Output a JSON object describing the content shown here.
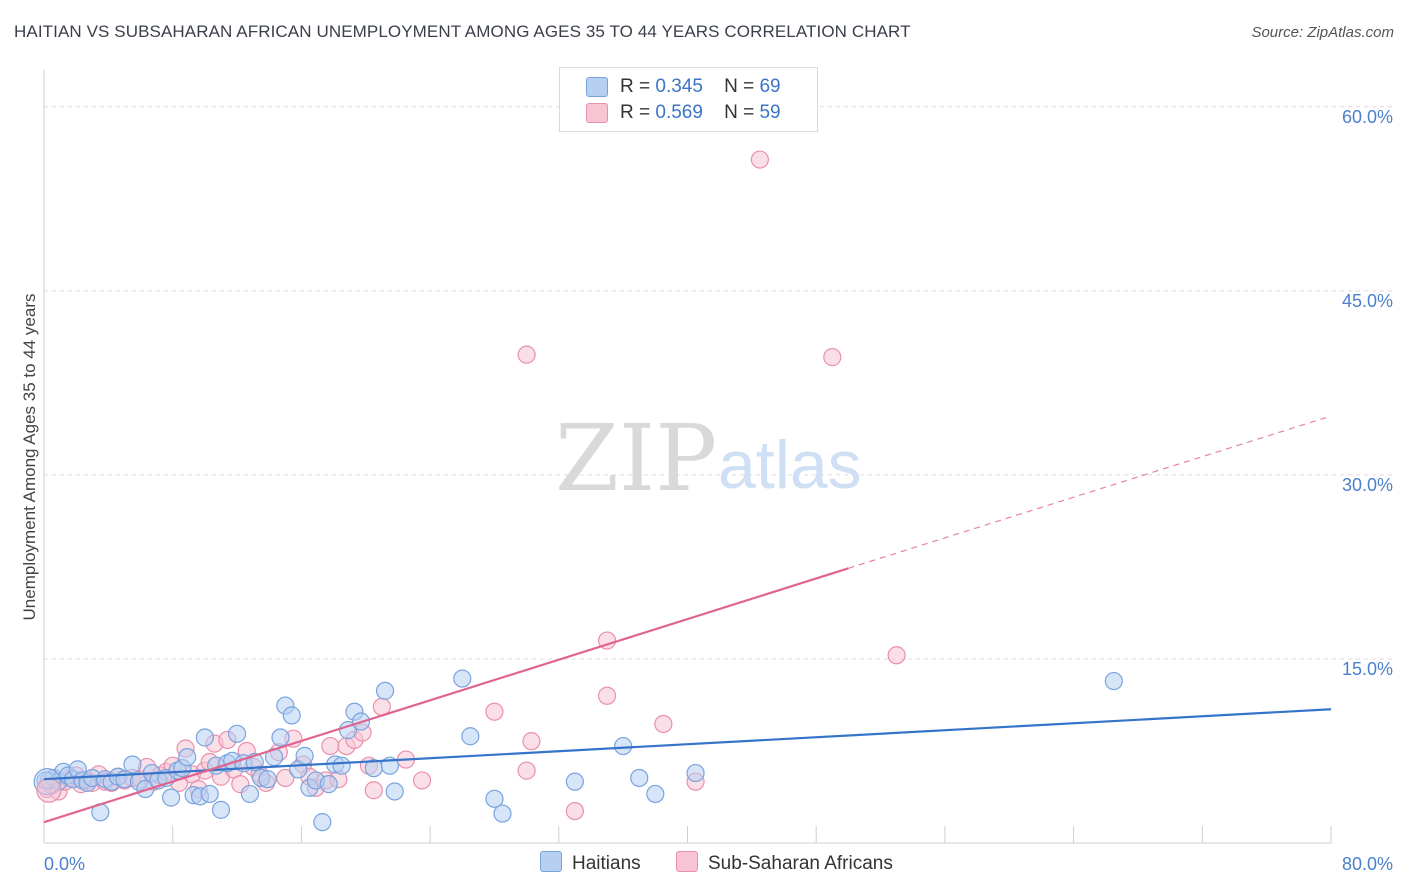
{
  "title": "HAITIAN VS SUBSAHARAN AFRICAN UNEMPLOYMENT AMONG AGES 35 TO 44 YEARS CORRELATION CHART",
  "source": "Source: ZipAtlas.com",
  "watermark": {
    "zip": "ZIP",
    "atlas": "atlas"
  },
  "legend_top": [
    {
      "r_label": "R =",
      "r_value": "0.345",
      "n_label": "N =",
      "n_value": "69"
    },
    {
      "r_label": "R =",
      "r_value": "0.569",
      "n_label": "N =",
      "n_value": "59"
    }
  ],
  "legend_bottom": [
    {
      "label": "Haitians"
    },
    {
      "label": "Sub-Saharan Africans"
    }
  ],
  "colors": {
    "haitian_fill": "#b7d0f2",
    "haitian_stroke": "#7aa3dd",
    "haitian_line": "#3674c9",
    "ssa_fill": "#f8c4d4",
    "ssa_stroke": "#e98fae",
    "ssa_line": "#e0648e",
    "tick_label": "#4a80cc",
    "grid": "#dcdcdc"
  },
  "chart_data": {
    "type": "scatter",
    "title": "HAITIAN VS SUBSAHARAN AFRICAN UNEMPLOYMENT AMONG AGES 35 TO 44 YEARS CORRELATION CHART",
    "xlabel": "",
    "ylabel": "Unemployment Among Ages 35 to 44 years",
    "xlim": [
      0,
      80
    ],
    "ylim": [
      0,
      63
    ],
    "x_tick_labels": [
      "0.0%",
      "80.0%"
    ],
    "y_ticks": [
      15,
      30,
      45,
      60
    ],
    "y_tick_labels": [
      "15.0%",
      "30.0%",
      "45.0%",
      "60.0%"
    ],
    "grid": true,
    "series": [
      {
        "name": "Haitians",
        "r": 0.345,
        "n": 69,
        "trend": {
          "x": [
            0,
            80
          ],
          "y": [
            5.2,
            10.9
          ],
          "dashed_from": null
        },
        "points": [
          [
            0.3,
            5.1
          ],
          [
            0.6,
            5.3
          ],
          [
            0.9,
            5.0
          ],
          [
            1.2,
            5.8
          ],
          [
            1.5,
            5.5
          ],
          [
            1.8,
            5.2
          ],
          [
            2.1,
            6.0
          ],
          [
            2.4,
            5.1
          ],
          [
            2.7,
            4.9
          ],
          [
            3.0,
            5.3
          ],
          [
            3.5,
            2.5
          ],
          [
            3.8,
            5.2
          ],
          [
            4.2,
            5.0
          ],
          [
            4.6,
            5.4
          ],
          [
            5.0,
            5.2
          ],
          [
            5.5,
            6.4
          ],
          [
            5.9,
            5.0
          ],
          [
            6.3,
            4.4
          ],
          [
            6.7,
            5.7
          ],
          [
            7.1,
            5.1
          ],
          [
            7.6,
            5.3
          ],
          [
            7.9,
            3.7
          ],
          [
            8.3,
            5.9
          ],
          [
            8.6,
            6.1
          ],
          [
            8.9,
            7.0
          ],
          [
            9.3,
            3.9
          ],
          [
            9.7,
            3.8
          ],
          [
            10.0,
            8.6
          ],
          [
            10.3,
            4.0
          ],
          [
            10.7,
            6.3
          ],
          [
            11.0,
            2.7
          ],
          [
            11.4,
            6.5
          ],
          [
            11.7,
            6.7
          ],
          [
            12.0,
            8.9
          ],
          [
            12.4,
            6.5
          ],
          [
            12.8,
            4.0
          ],
          [
            13.1,
            6.6
          ],
          [
            13.5,
            5.3
          ],
          [
            13.9,
            5.2
          ],
          [
            14.3,
            7.0
          ],
          [
            14.7,
            8.6
          ],
          [
            15.0,
            11.2
          ],
          [
            15.4,
            10.4
          ],
          [
            15.8,
            6.0
          ],
          [
            16.2,
            7.1
          ],
          [
            16.5,
            4.5
          ],
          [
            16.9,
            5.1
          ],
          [
            17.3,
            1.7
          ],
          [
            17.7,
            4.8
          ],
          [
            18.1,
            6.4
          ],
          [
            18.5,
            6.3
          ],
          [
            18.9,
            9.2
          ],
          [
            19.3,
            10.7
          ],
          [
            19.7,
            9.9
          ],
          [
            20.5,
            6.1
          ],
          [
            21.2,
            12.4
          ],
          [
            21.5,
            6.3
          ],
          [
            21.8,
            4.2
          ],
          [
            26.0,
            13.4
          ],
          [
            26.5,
            8.7
          ],
          [
            28.0,
            3.6
          ],
          [
            28.5,
            2.4
          ],
          [
            33.0,
            5.0
          ],
          [
            36.0,
            7.9
          ],
          [
            37.0,
            5.3
          ],
          [
            38.0,
            4.0
          ],
          [
            40.5,
            5.7
          ],
          [
            66.5,
            13.2
          ],
          [
            0.1,
            5.1
          ]
        ]
      },
      {
        "name": "Sub-Saharan Africans",
        "r": 0.569,
        "n": 59,
        "trend": {
          "x": [
            0,
            80
          ],
          "y": [
            1.7,
            34.8
          ],
          "dashed_from": 50
        },
        "points": [
          [
            0.2,
            4.4
          ],
          [
            0.5,
            4.7
          ],
          [
            0.9,
            4.2
          ],
          [
            1.3,
            5.0
          ],
          [
            1.6,
            5.3
          ],
          [
            2.0,
            5.5
          ],
          [
            2.3,
            4.8
          ],
          [
            2.7,
            5.1
          ],
          [
            3.0,
            4.9
          ],
          [
            3.4,
            5.6
          ],
          [
            3.8,
            5.0
          ],
          [
            4.2,
            4.9
          ],
          [
            4.6,
            5.4
          ],
          [
            5.0,
            5.1
          ],
          [
            5.5,
            5.3
          ],
          [
            6.0,
            5.2
          ],
          [
            6.4,
            6.2
          ],
          [
            6.8,
            5.0
          ],
          [
            7.2,
            5.5
          ],
          [
            7.6,
            5.8
          ],
          [
            8.0,
            6.3
          ],
          [
            8.4,
            4.9
          ],
          [
            8.8,
            7.7
          ],
          [
            9.2,
            5.6
          ],
          [
            9.6,
            4.4
          ],
          [
            10.0,
            5.9
          ],
          [
            10.3,
            6.6
          ],
          [
            10.6,
            8.1
          ],
          [
            11.0,
            5.4
          ],
          [
            11.4,
            8.4
          ],
          [
            11.8,
            6.0
          ],
          [
            12.2,
            4.8
          ],
          [
            12.6,
            7.5
          ],
          [
            13.0,
            6.2
          ],
          [
            13.4,
            5.6
          ],
          [
            13.8,
            4.9
          ],
          [
            14.6,
            7.4
          ],
          [
            15.0,
            5.3
          ],
          [
            15.5,
            8.5
          ],
          [
            16.1,
            6.4
          ],
          [
            16.5,
            5.4
          ],
          [
            16.9,
            4.5
          ],
          [
            17.5,
            5.1
          ],
          [
            17.8,
            7.9
          ],
          [
            18.3,
            5.2
          ],
          [
            18.8,
            7.9
          ],
          [
            19.3,
            8.4
          ],
          [
            19.8,
            9.0
          ],
          [
            20.2,
            6.3
          ],
          [
            20.5,
            4.3
          ],
          [
            21.0,
            11.1
          ],
          [
            22.5,
            6.8
          ],
          [
            23.5,
            5.1
          ],
          [
            28.0,
            10.7
          ],
          [
            30.3,
            8.3
          ],
          [
            30.0,
            5.9
          ],
          [
            33.0,
            2.6
          ],
          [
            35.0,
            16.5
          ],
          [
            53.0,
            15.3
          ]
        ],
        "outliers": [
          [
            30.0,
            39.8
          ],
          [
            44.5,
            55.7
          ],
          [
            49.0,
            39.6
          ],
          [
            35.0,
            12.0
          ],
          [
            38.5,
            9.7
          ],
          [
            40.5,
            5.0
          ]
        ]
      }
    ]
  }
}
